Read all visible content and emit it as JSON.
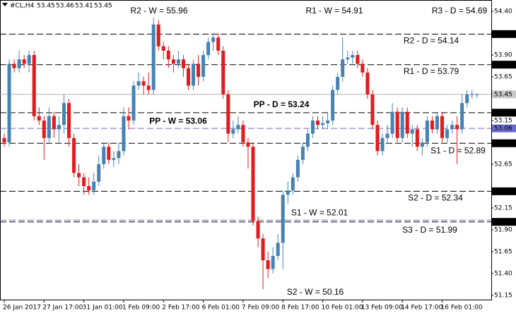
{
  "chart_data": {
    "type": "candlestick",
    "symbol": "#CL,H4",
    "categories": [
      "26 Jan 2017",
      null,
      null,
      null,
      null,
      null,
      null,
      null,
      "27 Jan 17:00",
      null,
      null,
      null,
      null,
      null,
      null,
      null,
      "31 Jan 01:00",
      null,
      null,
      null,
      null,
      null,
      null,
      null,
      "1 Feb 09:00",
      null,
      null,
      null,
      null,
      null,
      null,
      null,
      "2 Feb 17:00",
      null,
      null,
      null,
      null,
      null,
      null,
      null,
      "6 Feb 01:00",
      null,
      null,
      null,
      null,
      null,
      null,
      null,
      "7 Feb 09:00",
      null,
      null,
      null,
      null,
      null,
      null,
      null,
      "8 Feb 17:00",
      null,
      null,
      null,
      null,
      null,
      null,
      null,
      "10 Feb 01:00",
      null,
      null,
      null,
      null,
      null,
      null,
      null,
      "13 Feb 09:00",
      null,
      null,
      null,
      null,
      null,
      null,
      null,
      "14 Feb 17:00",
      null,
      null,
      null,
      null,
      null,
      null,
      null,
      "16 Feb 01:00",
      null,
      null,
      null,
      null,
      null,
      null,
      null
    ],
    "open": [
      52.95,
      52.9,
      53.8,
      53.75,
      53.85,
      53.8,
      53.9,
      53.2,
      53.15,
      52.95,
      53.2,
      53.05,
      53.1,
      53.35,
      52.95,
      52.55,
      52.5,
      52.4,
      52.35,
      52.45,
      52.65,
      52.85,
      52.7,
      52.72,
      52.8,
      53.2,
      53.15,
      53.55,
      53.6,
      53.55,
      53.5,
      54.25,
      54.0,
      53.95,
      53.85,
      53.8,
      53.85,
      53.75,
      53.55,
      53.8,
      53.65,
      53.9,
      54.05,
      54.1,
      53.95,
      53.45,
      53.0,
      53.05,
      53.1,
      52.9,
      52.85,
      52.0,
      51.8,
      51.55,
      51.45,
      51.6,
      51.75,
      52.3,
      52.35,
      52.5,
      52.7,
      52.85,
      53.0,
      53.15,
      53.1,
      53.12,
      53.15,
      53.5,
      53.65,
      53.85,
      53.87,
      53.9,
      53.8,
      53.7,
      53.45,
      53.1,
      52.8,
      52.95,
      53.0,
      53.25,
      52.95,
      53.25,
      53.0,
      53.05,
      52.85,
      52.9,
      53.15,
      53.05,
      53.2,
      52.95,
      53.05,
      53.1,
      53.05,
      53.35,
      53.45,
      53.45
    ],
    "high": [
      53.0,
      53.85,
      53.85,
      53.95,
      53.9,
      53.95,
      53.95,
      53.3,
      53.2,
      53.3,
      53.25,
      53.2,
      53.45,
      53.4,
      53.0,
      52.65,
      52.55,
      52.5,
      52.55,
      52.75,
      52.9,
      52.9,
      52.8,
      52.9,
      53.3,
      53.3,
      53.6,
      53.7,
      53.65,
      53.7,
      54.33,
      54.3,
      54.05,
      54.0,
      53.9,
      53.95,
      53.9,
      53.8,
      53.85,
      53.9,
      53.95,
      54.1,
      54.15,
      54.15,
      54.0,
      53.5,
      53.15,
      53.2,
      53.15,
      52.95,
      52.9,
      52.05,
      51.85,
      51.65,
      51.7,
      51.85,
      52.35,
      52.45,
      52.55,
      52.75,
      52.9,
      53.05,
      53.2,
      53.2,
      53.2,
      53.25,
      53.55,
      53.7,
      54.1,
      53.95,
      53.95,
      53.95,
      53.85,
      53.75,
      53.5,
      53.15,
      53.0,
      53.1,
      53.35,
      53.3,
      53.3,
      53.3,
      53.1,
      53.1,
      52.95,
      53.2,
      53.2,
      53.25,
      53.25,
      53.1,
      53.15,
      53.2,
      53.45,
      53.5,
      53.5,
      53.46
    ],
    "low": [
      52.85,
      52.85,
      53.7,
      53.7,
      53.75,
      53.7,
      53.15,
      53.1,
      52.7,
      52.9,
      52.95,
      52.9,
      53.0,
      52.85,
      52.5,
      52.4,
      52.3,
      52.3,
      52.3,
      52.4,
      52.6,
      52.65,
      52.62,
      52.65,
      52.75,
      53.05,
      53.1,
      53.5,
      53.45,
      53.45,
      53.45,
      53.95,
      53.85,
      53.75,
      53.7,
      53.75,
      53.65,
      53.5,
      53.5,
      53.55,
      53.6,
      53.85,
      53.95,
      53.9,
      53.4,
      52.9,
      52.95,
      53.0,
      52.85,
      52.6,
      51.95,
      51.7,
      51.22,
      51.35,
      51.4,
      51.55,
      51.45,
      52.2,
      52.3,
      52.45,
      52.65,
      52.8,
      52.95,
      53.05,
      53.05,
      53.05,
      53.1,
      53.45,
      53.6,
      53.8,
      53.8,
      53.75,
      53.65,
      53.4,
      53.05,
      52.75,
      52.75,
      52.9,
      52.95,
      52.9,
      52.9,
      52.95,
      52.85,
      52.8,
      52.75,
      52.85,
      53.0,
      53.0,
      52.9,
      52.9,
      53.0,
      52.65,
      53.0,
      53.3,
      53.4,
      53.41
    ],
    "close": [
      52.9,
      53.8,
      53.75,
      53.85,
      53.8,
      53.9,
      53.2,
      53.15,
      52.95,
      53.2,
      53.05,
      53.1,
      53.35,
      52.95,
      52.55,
      52.5,
      52.4,
      52.35,
      52.45,
      52.65,
      52.85,
      52.7,
      52.72,
      52.8,
      53.2,
      53.15,
      53.55,
      53.6,
      53.55,
      53.5,
      54.25,
      54.0,
      53.95,
      53.85,
      53.8,
      53.85,
      53.75,
      53.55,
      53.8,
      53.65,
      53.9,
      54.05,
      54.1,
      53.95,
      53.45,
      53.0,
      53.05,
      53.1,
      52.9,
      52.85,
      52.0,
      51.8,
      51.55,
      51.45,
      51.6,
      51.75,
      52.3,
      52.35,
      52.5,
      52.7,
      52.85,
      53.0,
      53.15,
      53.1,
      53.12,
      53.15,
      53.5,
      53.65,
      53.85,
      53.87,
      53.9,
      53.8,
      53.7,
      53.45,
      53.1,
      52.8,
      52.95,
      53.0,
      53.25,
      52.95,
      53.25,
      53.0,
      53.05,
      52.85,
      52.9,
      53.15,
      53.05,
      53.2,
      52.95,
      53.05,
      53.1,
      53.05,
      53.35,
      53.45,
      53.45,
      53.45
    ],
    "up_color": "#4682b4",
    "down_color": "#e41a1c",
    "ylim": [
      51.1,
      54.53
    ],
    "yticks": [
      {
        "value": 54.4,
        "label": "54.40"
      },
      {
        "value": 53.9,
        "label": "53.90"
      },
      {
        "value": 53.65,
        "label": "53.65"
      },
      {
        "value": 53.15,
        "label": "53.15"
      },
      {
        "value": 52.65,
        "label": "52.65"
      },
      {
        "value": 52.15,
        "label": "52.15"
      },
      {
        "value": 51.9,
        "label": "51.90"
      },
      {
        "value": 51.65,
        "label": "51.65"
      },
      {
        "value": 51.4,
        "label": "51.40"
      },
      {
        "value": 51.15,
        "label": "51.15"
      }
    ],
    "levels": [
      {
        "label": "R2 - W = 55.96",
        "value": 55.96,
        "color": "#7b7bd0",
        "line": "none",
        "box": false
      },
      {
        "label": "R1 - W = 54.91",
        "value": 54.91,
        "color": "#7b7bd0",
        "line": "none",
        "box": false
      },
      {
        "label": "R3 - D = 54.69",
        "value": 54.69,
        "color": "#e41a1c",
        "line": "none",
        "box": false
      },
      {
        "label": "R2 - D = 54.14",
        "value": 54.14,
        "color": "#e41a1c",
        "line": "#000000",
        "box": true
      },
      {
        "label": "R1 - D = 53.79",
        "value": 53.79,
        "color": "#e41a1c",
        "line": "#000000",
        "box": true
      },
      {
        "label": "PP - D = 53.24",
        "value": 53.24,
        "color": "#3a5fcd",
        "line": "#000000",
        "box": true
      },
      {
        "label": "PP - W = 53.06",
        "value": 53.06,
        "color": "#6a6acd",
        "line": "#6a6acd",
        "box": true
      },
      {
        "label": "S1 - D = 52.89",
        "value": 52.89,
        "color": "#e41a1c",
        "line": "#000000",
        "box": true
      },
      {
        "label": "S2 - D = 52.34",
        "value": 52.34,
        "color": "#e41a1c",
        "line": "#000000",
        "box": true
      },
      {
        "label": "S1 - W = 52.01",
        "value": 52.01,
        "color": "#7b7bd0",
        "line": "#6a6acd",
        "box": false
      },
      {
        "label": "S3 - D = 51.99",
        "value": 51.99,
        "color": "#e41a1c",
        "line": "#000000",
        "box": true
      },
      {
        "label": "S2 - W = 50.16",
        "value": 50.16,
        "color": "#7b7bd0",
        "line": "none",
        "box": false
      }
    ]
  }
}
